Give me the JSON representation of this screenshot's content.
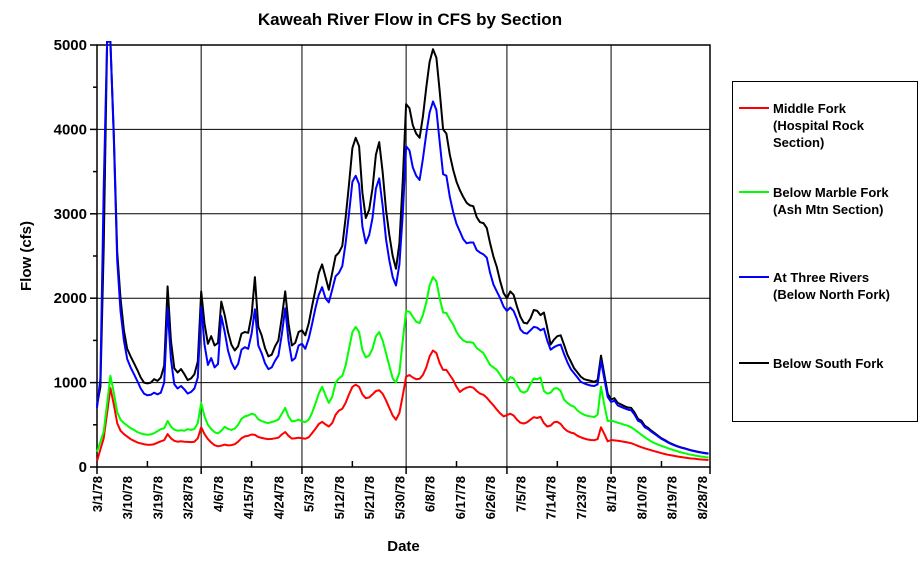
{
  "chart_data": {
    "type": "line",
    "title": "Kaweah River Flow in CFS by Section",
    "xlabel": "Date",
    "ylabel": "Flow (cfs)",
    "ylim": [
      0,
      5000
    ],
    "grid": true,
    "legend_position": "right",
    "y_major_ticks": [
      0,
      1000,
      2000,
      3000,
      4000,
      5000
    ],
    "y_minor_tick_step": 500,
    "x_tick_labels": [
      "3/1/78",
      "3/10/78",
      "3/19/78",
      "3/28/78",
      "4/6/78",
      "4/15/78",
      "4/24/78",
      "5/3/78",
      "5/12/78",
      "5/21/78",
      "5/30/78",
      "6/8/78",
      "6/17/78",
      "6/26/78",
      "7/5/78",
      "7/14/78",
      "7/23/78",
      "8/1/78",
      "8/10/78",
      "8/19/78",
      "8/28/78"
    ],
    "x_tick_day_offsets": [
      0,
      9,
      18,
      27,
      36,
      45,
      54,
      63,
      72,
      81,
      90,
      99,
      108,
      117,
      126,
      135,
      144,
      153,
      162,
      171,
      180
    ],
    "x_month_gridline_day_offsets": [
      31,
      61,
      92,
      122,
      153
    ],
    "x_minor_tick_day_offsets": [
      15,
      46,
      76,
      107,
      137,
      168
    ],
    "x_unit": "days since 3/1/78, one value per day",
    "draw_order": [
      0,
      1,
      3,
      2
    ],
    "series": [
      {
        "name": "Middle  Fork (Hospital Rock Section)",
        "legend_lines": [
          "Middle  Fork",
          "(Hospital Rock",
          "Section)"
        ],
        "color": "#FF0000",
        "values": [
          70,
          210,
          340,
          640,
          935,
          740,
          520,
          430,
          390,
          360,
          330,
          310,
          292,
          280,
          270,
          264,
          264,
          270,
          288,
          305,
          318,
          390,
          340,
          310,
          300,
          305,
          300,
          297,
          295,
          300,
          340,
          470,
          390,
          330,
          290,
          258,
          245,
          252,
          265,
          256,
          260,
          270,
          300,
          340,
          363,
          370,
          385,
          380,
          356,
          345,
          336,
          330,
          333,
          340,
          347,
          385,
          415,
          370,
          336,
          340,
          346,
          340,
          335,
          352,
          400,
          452,
          510,
          535,
          505,
          480,
          520,
          620,
          668,
          690,
          760,
          860,
          950,
          975,
          950,
          860,
          815,
          825,
          860,
          900,
          910,
          868,
          790,
          700,
          610,
          560,
          640,
          850,
          1070,
          1090,
          1060,
          1040,
          1045,
          1090,
          1180,
          1310,
          1380,
          1350,
          1230,
          1150,
          1150,
          1090,
          1030,
          950,
          890,
          920,
          940,
          950,
          940,
          900,
          870,
          855,
          820,
          775,
          730,
          680,
          635,
          600,
          615,
          632,
          610,
          560,
          525,
          515,
          530,
          560,
          590,
          580,
          595,
          520,
          480,
          490,
          530,
          535,
          510,
          460,
          425,
          408,
          398,
          370,
          352,
          338,
          326,
          320,
          317,
          330,
          470,
          390,
          305,
          320,
          315,
          310,
          305,
          297,
          290,
          282,
          266,
          250,
          235,
          222,
          210,
          198,
          186,
          175,
          164,
          154,
          145,
          137,
          130,
          123,
          117,
          111,
          106,
          101,
          97,
          93,
          89,
          86,
          83
        ]
      },
      {
        "name": "Below Marble Fork (Ash Mtn Section)",
        "legend_lines": [
          "Below Marble Fork",
          "(Ash Mtn Section)"
        ],
        "color": "#00FF00",
        "values": [
          180,
          300,
          420,
          750,
          1080,
          880,
          650,
          560,
          520,
          490,
          460,
          440,
          415,
          398,
          388,
          382,
          386,
          400,
          425,
          448,
          460,
          545,
          480,
          442,
          430,
          436,
          430,
          448,
          440,
          450,
          520,
          758,
          600,
          500,
          450,
          412,
          398,
          430,
          475,
          452,
          440,
          455,
          500,
          570,
          600,
          610,
          632,
          620,
          565,
          545,
          530,
          520,
          532,
          545,
          562,
          630,
          700,
          600,
          540,
          546,
          560,
          540,
          532,
          560,
          640,
          750,
          870,
          950,
          850,
          760,
          830,
          1000,
          1050,
          1080,
          1200,
          1400,
          1600,
          1660,
          1600,
          1380,
          1300,
          1320,
          1400,
          1550,
          1600,
          1500,
          1350,
          1200,
          1050,
          1000,
          1120,
          1500,
          1850,
          1840,
          1780,
          1720,
          1705,
          1800,
          1950,
          2150,
          2250,
          2200,
          2000,
          1830,
          1825,
          1750,
          1690,
          1600,
          1540,
          1500,
          1480,
          1480,
          1470,
          1410,
          1380,
          1350,
          1280,
          1210,
          1180,
          1150,
          1090,
          1030,
          1010,
          1065,
          1050,
          970,
          900,
          880,
          900,
          980,
          1050,
          1040,
          1060,
          900,
          870,
          880,
          930,
          935,
          900,
          800,
          760,
          730,
          715,
          670,
          640,
          618,
          605,
          598,
          593,
          620,
          950,
          730,
          545,
          550,
          538,
          525,
          513,
          500,
          488,
          470,
          443,
          413,
          383,
          353,
          327,
          302,
          281,
          265,
          250,
          237,
          222,
          208,
          195,
          183,
          172,
          162,
          152,
          144,
          136,
          129,
          123,
          117,
          112
        ]
      },
      {
        "name": "At Three Rivers (Below North Fork)",
        "legend_lines": [
          "At Three Rivers",
          "(Below North Fork)"
        ],
        "color": "#0000FF",
        "values": [
          700,
          1050,
          3300,
          5045,
          5045,
          3900,
          2450,
          1850,
          1500,
          1280,
          1180,
          1100,
          1020,
          930,
          870,
          850,
          855,
          880,
          860,
          880,
          1000,
          1880,
          1280,
          980,
          930,
          960,
          920,
          870,
          890,
          930,
          1060,
          1900,
          1450,
          1210,
          1290,
          1180,
          1220,
          1790,
          1600,
          1380,
          1240,
          1160,
          1220,
          1390,
          1420,
          1400,
          1580,
          1870,
          1440,
          1350,
          1230,
          1160,
          1180,
          1260,
          1320,
          1570,
          1880,
          1500,
          1260,
          1290,
          1440,
          1460,
          1400,
          1520,
          1690,
          1880,
          2040,
          2130,
          2000,
          1950,
          2100,
          2260,
          2300,
          2380,
          2650,
          3000,
          3380,
          3450,
          3350,
          2850,
          2650,
          2750,
          2950,
          3300,
          3420,
          3100,
          2700,
          2450,
          2250,
          2150,
          2400,
          3000,
          3800,
          3750,
          3550,
          3450,
          3400,
          3650,
          3950,
          4200,
          4330,
          4230,
          3850,
          3470,
          3450,
          3200,
          3020,
          2880,
          2790,
          2700,
          2650,
          2660,
          2660,
          2570,
          2540,
          2520,
          2480,
          2300,
          2160,
          2080,
          2000,
          1900,
          1850,
          1890,
          1850,
          1750,
          1630,
          1590,
          1580,
          1620,
          1660,
          1650,
          1620,
          1640,
          1500,
          1390,
          1420,
          1440,
          1450,
          1340,
          1240,
          1160,
          1110,
          1060,
          1010,
          990,
          975,
          965,
          960,
          980,
          1260,
          1040,
          830,
          770,
          785,
          730,
          712,
          695,
          680,
          672,
          620,
          548,
          528,
          472,
          450,
          418,
          390,
          362,
          333,
          313,
          289,
          270,
          253,
          239,
          227,
          217,
          205,
          194,
          185,
          177,
          169,
          163,
          157
        ]
      },
      {
        "name": "Below South Fork",
        "legend_lines": [
          "Below South Fork"
        ],
        "color": "#000000",
        "values": [
          730,
          950,
          2600,
          5040,
          5040,
          3950,
          2550,
          2000,
          1620,
          1400,
          1310,
          1230,
          1150,
          1060,
          1000,
          990,
          1000,
          1040,
          1020,
          1060,
          1200,
          2140,
          1500,
          1170,
          1120,
          1160,
          1100,
          1030,
          1050,
          1100,
          1250,
          2080,
          1700,
          1460,
          1550,
          1440,
          1470,
          1960,
          1800,
          1600,
          1450,
          1380,
          1430,
          1580,
          1600,
          1590,
          1800,
          2250,
          1660,
          1560,
          1410,
          1310,
          1330,
          1430,
          1500,
          1770,
          2080,
          1700,
          1440,
          1470,
          1600,
          1620,
          1560,
          1700,
          1900,
          2100,
          2300,
          2400,
          2250,
          2100,
          2300,
          2500,
          2540,
          2620,
          2950,
          3350,
          3780,
          3900,
          3800,
          3250,
          2950,
          3050,
          3300,
          3700,
          3850,
          3500,
          3050,
          2750,
          2500,
          2350,
          2650,
          3400,
          4300,
          4250,
          4050,
          3950,
          3900,
          4150,
          4500,
          4800,
          4950,
          4850,
          4450,
          4000,
          3950,
          3700,
          3520,
          3380,
          3280,
          3200,
          3130,
          3100,
          3090,
          2960,
          2900,
          2890,
          2830,
          2650,
          2490,
          2370,
          2200,
          2060,
          2000,
          2080,
          2040,
          1900,
          1780,
          1710,
          1700,
          1760,
          1860,
          1850,
          1800,
          1830,
          1650,
          1450,
          1510,
          1550,
          1560,
          1450,
          1330,
          1250,
          1170,
          1120,
          1070,
          1040,
          1030,
          1020,
          1010,
          1030,
          1320,
          1090,
          870,
          800,
          815,
          760,
          740,
          720,
          705,
          700,
          645,
          570,
          550,
          490,
          465,
          430,
          400,
          370,
          340,
          320,
          295,
          275,
          258,
          243,
          230,
          220,
          208,
          197,
          188,
          180,
          172,
          166,
          160
        ]
      }
    ]
  }
}
